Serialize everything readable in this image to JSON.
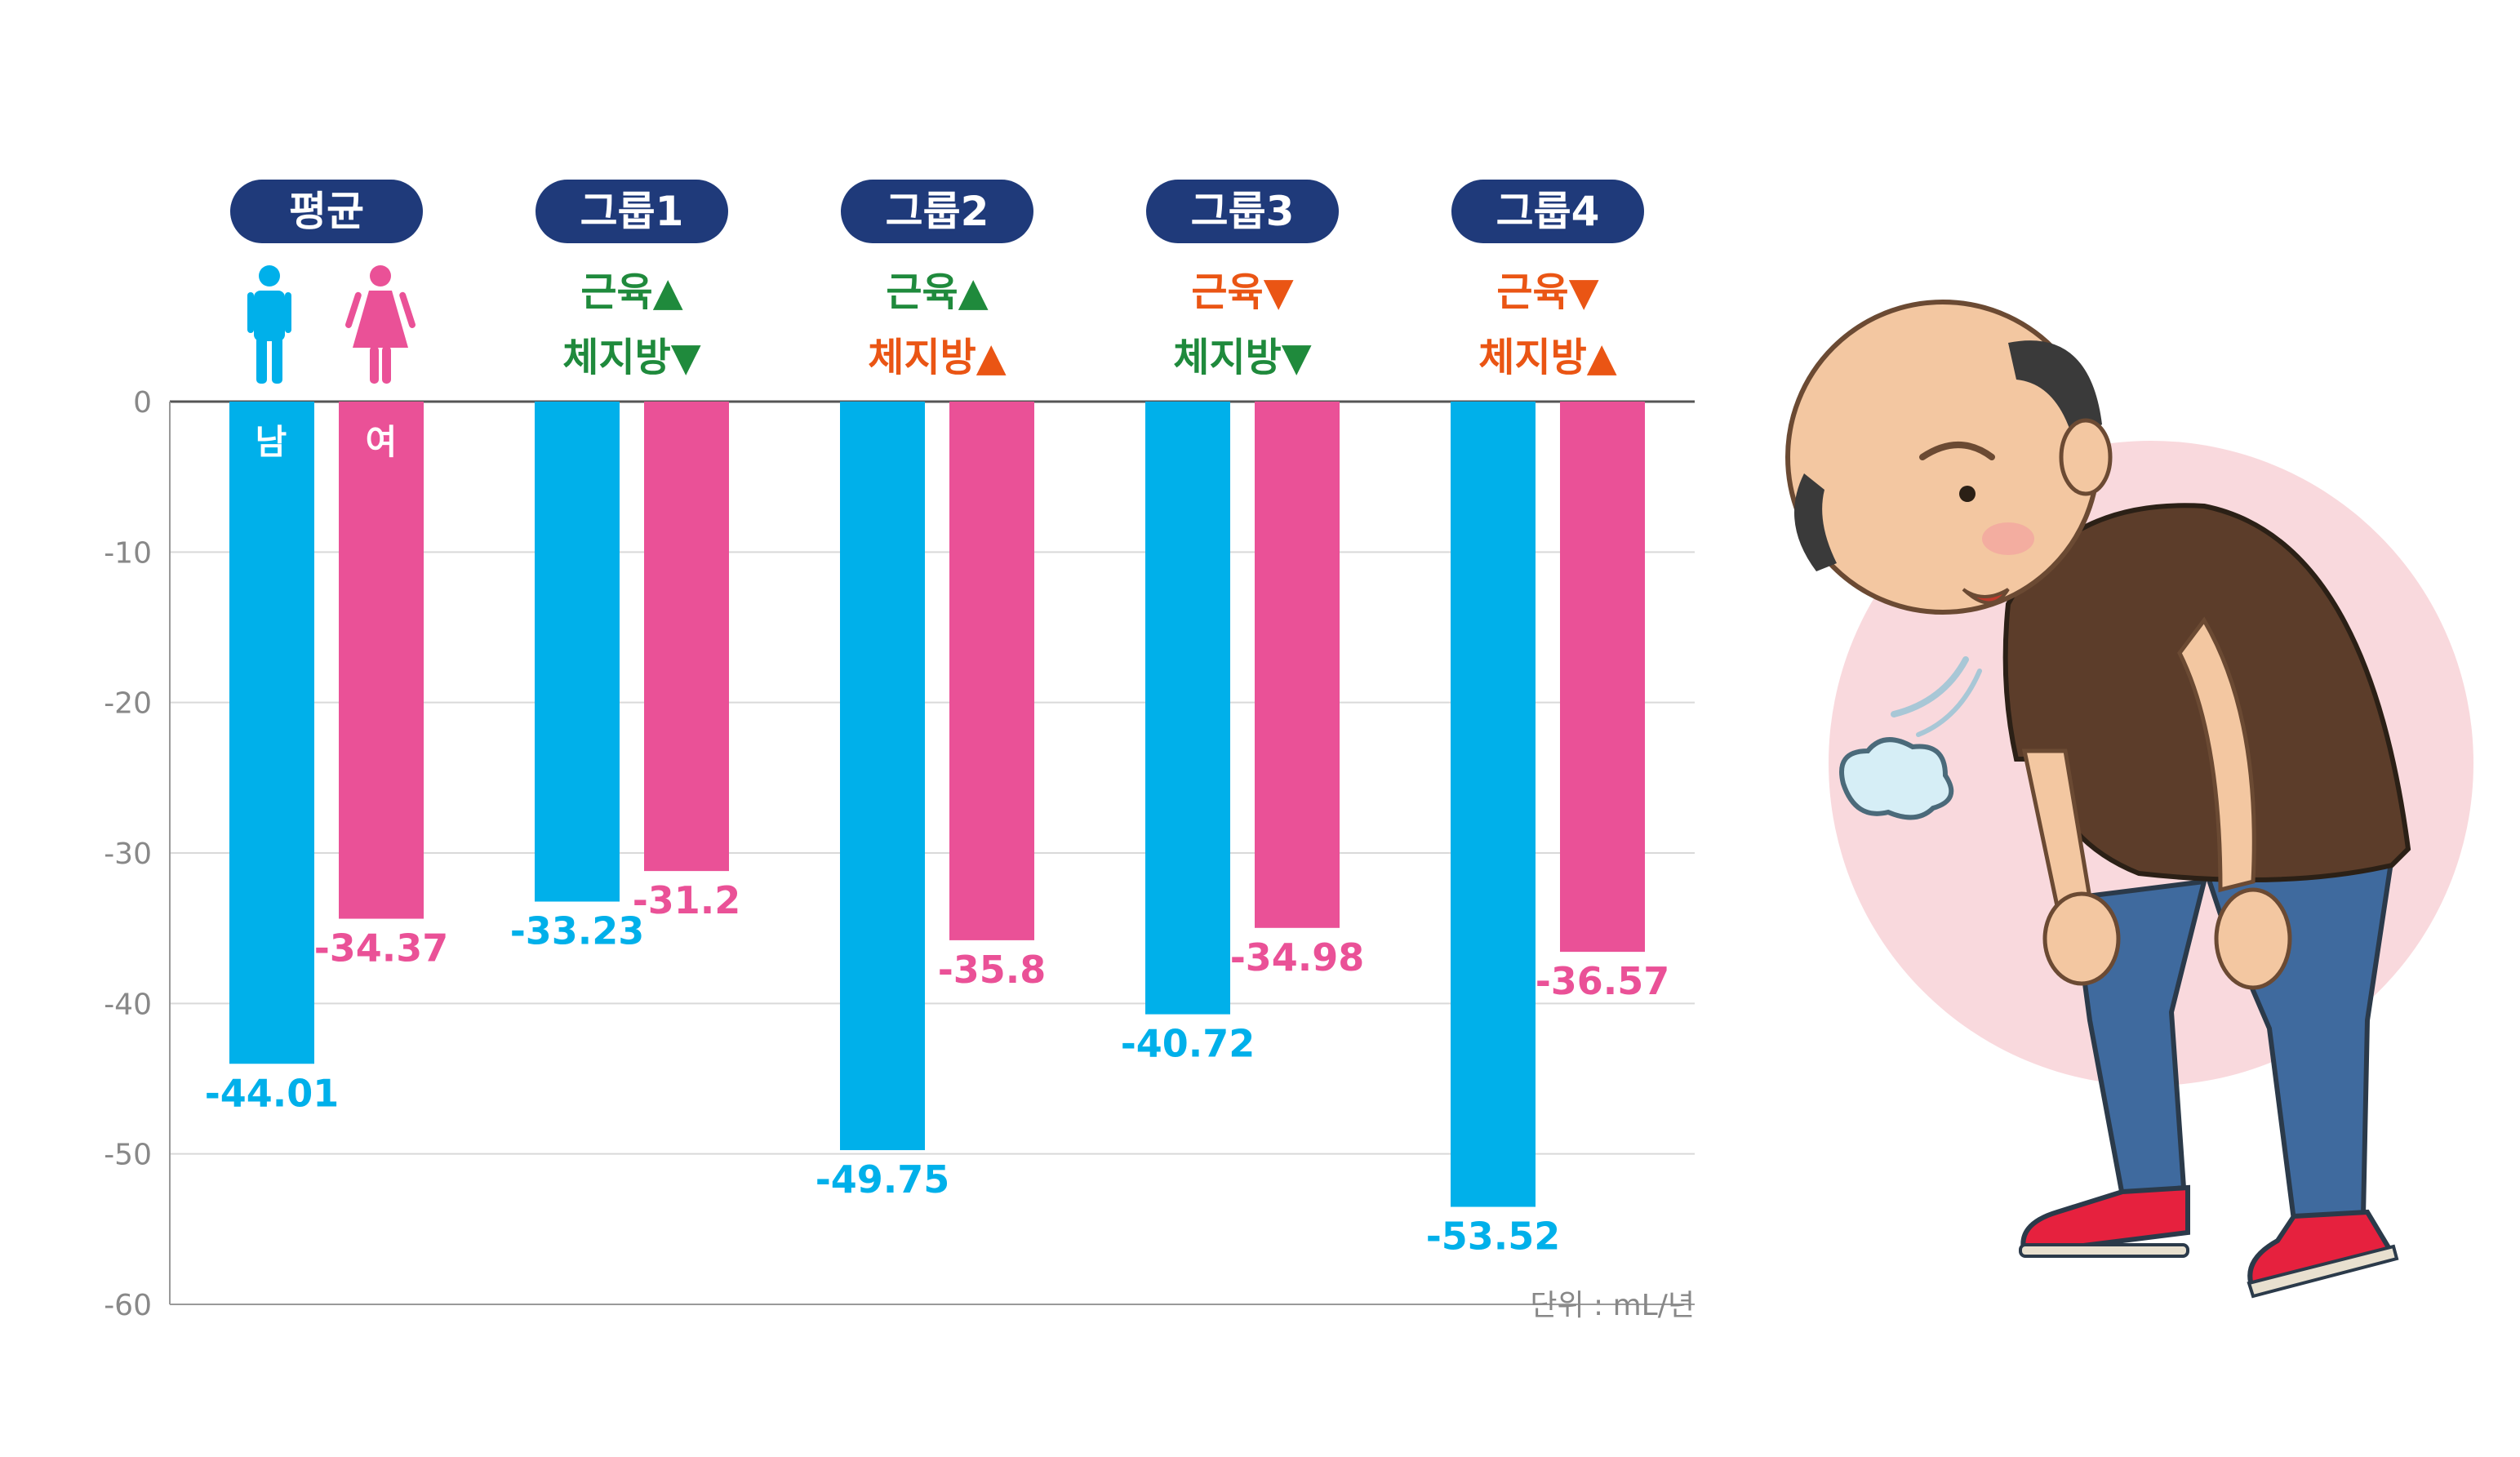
{
  "chart_data": {
    "type": "bar",
    "categories": [
      "평균",
      "그룹1",
      "그룹2",
      "그룹3",
      "그룹4"
    ],
    "series": [
      {
        "values": [
          -44.01,
          -33.23,
          -49.75,
          -40.72,
          -53.52
        ],
        "color": "#00b0ea"
      },
      {
        "values": [
          -34.37,
          -31.2,
          -35.8,
          -34.98,
          -36.57
        ],
        "color": "#ea5197"
      }
    ],
    "value_labels": [
      [
        "-44.01",
        "-33.23",
        "-49.75",
        "-40.72",
        "-53.52"
      ],
      [
        "-34.37",
        "-31.2",
        "-35.8",
        "-34.98",
        "-36.57"
      ]
    ],
    "sex_labels": [
      "남",
      "여"
    ],
    "conditions": [
      null,
      {
        "muscle": "근육▲",
        "muscle_color": "#1f8a3c",
        "fat": "체지방▼",
        "fat_color": "#1f8a3c"
      },
      {
        "muscle": "근육▲",
        "muscle_color": "#1f8a3c",
        "fat": "체지방▲",
        "fat_color": "#ea5514"
      },
      {
        "muscle": "근육▼",
        "muscle_color": "#ea5514",
        "fat": "체지방▼",
        "fat_color": "#1f8a3c"
      },
      {
        "muscle": "근육▼",
        "muscle_color": "#ea5514",
        "fat": "체지방▲",
        "fat_color": "#ea5514"
      }
    ],
    "ylim": [
      -60,
      0
    ],
    "yticks": [
      0,
      -10,
      -20,
      -30,
      -40,
      -50,
      -60
    ],
    "ytick_labels": [
      "0",
      "-10",
      "-20",
      "-30",
      "-40",
      "-50",
      "-60"
    ],
    "grid": true,
    "unit_text": "단위 : mL/년",
    "pill_color": "#1f3a7a"
  },
  "illustration": {
    "subject": "elderly-man-out-of-breath",
    "icons": [
      "male-person-icon",
      "female-person-icon"
    ]
  }
}
